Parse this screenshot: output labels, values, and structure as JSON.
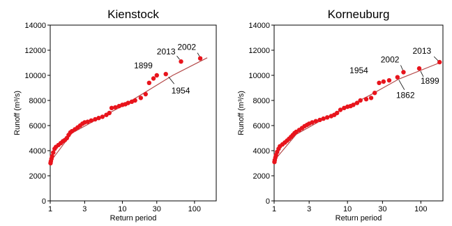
{
  "chart_data": [
    {
      "type": "scatter",
      "title": "Kienstock",
      "xlabel": "Return period",
      "ylabel": "Runoff (m³/s)",
      "x_scale": "log",
      "xlim": [
        1,
        200
      ],
      "ylim": [
        0,
        14000
      ],
      "x_ticks": [
        1,
        3,
        10,
        30,
        100
      ],
      "x_tick_labels": [
        "1",
        "3",
        "10",
        "30",
        "100"
      ],
      "y_ticks": [
        0,
        2000,
        4000,
        6000,
        8000,
        10000,
        12000,
        14000
      ],
      "y_tick_labels": [
        "0",
        "2000",
        "4000",
        "6000",
        "8000",
        "10000",
        "12000",
        "14000"
      ],
      "grid": false,
      "marker_color": "#e8141c",
      "fit_line": {
        "color": "#b44a4a",
        "points": [
          [
            1,
            3100
          ],
          [
            2,
            5400
          ],
          [
            5,
            6650
          ],
          [
            10,
            7550
          ],
          [
            20,
            8600
          ],
          [
            50,
            10000
          ],
          [
            150,
            11400
          ]
        ]
      },
      "points": [
        [
          1.01,
          3000
        ],
        [
          1.02,
          3150
        ],
        [
          1.04,
          3350
        ],
        [
          1.06,
          3550
        ],
        [
          1.1,
          3850
        ],
        [
          1.15,
          4150
        ],
        [
          1.2,
          4300
        ],
        [
          1.3,
          4450
        ],
        [
          1.4,
          4600
        ],
        [
          1.5,
          4750
        ],
        [
          1.6,
          4850
        ],
        [
          1.7,
          5000
        ],
        [
          1.8,
          5250
        ],
        [
          1.9,
          5450
        ],
        [
          2.0,
          5550
        ],
        [
          2.2,
          5700
        ],
        [
          2.4,
          5850
        ],
        [
          2.6,
          6000
        ],
        [
          2.8,
          6150
        ],
        [
          3.0,
          6250
        ],
        [
          3.3,
          6300
        ],
        [
          3.7,
          6400
        ],
        [
          4.2,
          6500
        ],
        [
          4.7,
          6600
        ],
        [
          5.3,
          6700
        ],
        [
          6.0,
          6850
        ],
        [
          6.6,
          7000
        ],
        [
          7.1,
          7400
        ],
        [
          8.0,
          7450
        ],
        [
          9.0,
          7550
        ],
        [
          10.0,
          7650
        ],
        [
          11.0,
          7700
        ],
        [
          12.0,
          7800
        ],
        [
          13.5,
          7900
        ],
        [
          15.0,
          8000
        ],
        [
          18.0,
          8200
        ],
        [
          21.0,
          8500
        ],
        [
          23.5,
          9400
        ],
        [
          27.0,
          9750
        ],
        [
          30.0,
          10000
        ],
        [
          40.0,
          10100
        ],
        [
          65.0,
          11100
        ],
        [
          120.0,
          11350
        ]
      ],
      "annotations": [
        {
          "label": "2013",
          "x": 65,
          "y": 11100
        },
        {
          "label": "2002",
          "x": 120,
          "y": 11350
        },
        {
          "label": "1899",
          "x": 30,
          "y": 10000
        },
        {
          "label": "1954",
          "x": 40,
          "y": 10100
        }
      ]
    },
    {
      "type": "scatter",
      "title": "Korneuburg",
      "xlabel": "Return period",
      "ylabel": "Runoff (m³/s)",
      "x_scale": "log",
      "xlim": [
        1,
        200
      ],
      "ylim": [
        0,
        14000
      ],
      "x_ticks": [
        1,
        3,
        10,
        30,
        100
      ],
      "x_tick_labels": [
        "1",
        "3",
        "10",
        "30",
        "100"
      ],
      "y_ticks": [
        0,
        2000,
        4000,
        6000,
        8000,
        10000,
        12000,
        14000
      ],
      "y_tick_labels": [
        "0",
        "2000",
        "4000",
        "6000",
        "8000",
        "10000",
        "12000",
        "14000"
      ],
      "grid": false,
      "marker_color": "#e8141c",
      "fit_line": {
        "color": "#b44a4a",
        "points": [
          [
            1,
            3200
          ],
          [
            2,
            5300
          ],
          [
            5,
            6600
          ],
          [
            10,
            7500
          ],
          [
            20,
            8400
          ],
          [
            50,
            9700
          ],
          [
            180,
            11000
          ]
        ]
      },
      "points": [
        [
          1.01,
          3100
        ],
        [
          1.02,
          3250
        ],
        [
          1.04,
          3450
        ],
        [
          1.06,
          3650
        ],
        [
          1.1,
          3900
        ],
        [
          1.15,
          4150
        ],
        [
          1.2,
          4350
        ],
        [
          1.3,
          4500
        ],
        [
          1.4,
          4650
        ],
        [
          1.5,
          4800
        ],
        [
          1.6,
          4950
        ],
        [
          1.7,
          5100
        ],
        [
          1.8,
          5250
        ],
        [
          1.9,
          5400
        ],
        [
          2.0,
          5500
        ],
        [
          2.2,
          5650
        ],
        [
          2.4,
          5800
        ],
        [
          2.6,
          5950
        ],
        [
          2.8,
          6050
        ],
        [
          3.0,
          6150
        ],
        [
          3.3,
          6250
        ],
        [
          3.7,
          6350
        ],
        [
          4.2,
          6450
        ],
        [
          4.7,
          6550
        ],
        [
          5.3,
          6650
        ],
        [
          6.0,
          6750
        ],
        [
          6.6,
          6850
        ],
        [
          7.2,
          7000
        ],
        [
          8.0,
          7250
        ],
        [
          9.0,
          7400
        ],
        [
          10.0,
          7500
        ],
        [
          11.0,
          7550
        ],
        [
          12.0,
          7650
        ],
        [
          13.5,
          7800
        ],
        [
          15.0,
          8000
        ],
        [
          18.0,
          8100
        ],
        [
          21.0,
          8200
        ],
        [
          23.5,
          8600
        ],
        [
          27.0,
          9400
        ],
        [
          31.0,
          9500
        ],
        [
          37.0,
          9600
        ],
        [
          48.0,
          9850
        ],
        [
          58.0,
          10250
        ],
        [
          95.0,
          10550
        ],
        [
          180.0,
          11050
        ]
      ],
      "annotations": [
        {
          "label": "2013",
          "x": 180,
          "y": 11050
        },
        {
          "label": "2002",
          "x": 58,
          "y": 10250
        },
        {
          "label": "1954",
          "x": 31,
          "y": 9500
        },
        {
          "label": "1862",
          "x": 48,
          "y": 9850
        },
        {
          "label": "1899",
          "x": 95,
          "y": 10550
        }
      ]
    }
  ]
}
